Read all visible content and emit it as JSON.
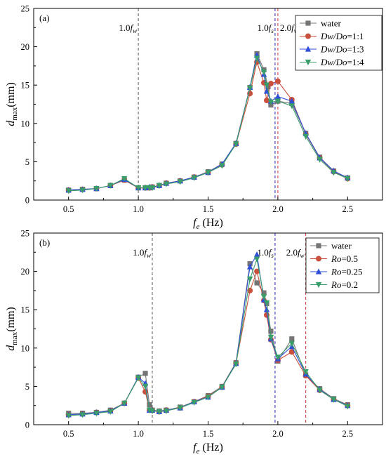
{
  "chart_data": [
    {
      "type": "line",
      "panel_label": "(a)",
      "xlabel_main": "f",
      "xlabel_sub": "e",
      "xlabel_unit": " (Hz)",
      "ylabel_main": "d",
      "ylabel_sub": "max",
      "ylabel_unit": "(mm)",
      "xlim": [
        0.25,
        2.75
      ],
      "ylim": [
        0,
        25
      ],
      "xticks": [
        0.5,
        1.0,
        1.5,
        2.0,
        2.5
      ],
      "xtick_labels": [
        "0.5",
        "1.0",
        "1.5",
        "2.0",
        "2.5"
      ],
      "yticks": [
        0,
        5,
        10,
        15,
        20,
        25
      ],
      "ytick_labels": [
        "0",
        "5",
        "10",
        "15",
        "20",
        "25"
      ],
      "grid": false,
      "legend_position": "top-right",
      "vlines": [
        {
          "x": 1.0,
          "color": "#555555",
          "label_main": "1.0",
          "label_italic": "f",
          "label_sub": "w",
          "anchor": "end"
        },
        {
          "x": 1.98,
          "color": "#2222cc",
          "label_main": "1.0",
          "label_italic": "f",
          "label_sub": "s",
          "anchor": "end"
        },
        {
          "x": 2.0,
          "color": "#cc3333",
          "label_main": "2.0",
          "label_italic": "f",
          "label_sub": "w",
          "anchor": "start"
        }
      ],
      "series": [
        {
          "name": "water",
          "color": "#757575",
          "marker": "square",
          "x": [
            0.5,
            0.6,
            0.7,
            0.8,
            0.9,
            1.0,
            1.05,
            1.08,
            1.1,
            1.15,
            1.2,
            1.3,
            1.4,
            1.5,
            1.6,
            1.7,
            1.8,
            1.85,
            1.9,
            1.93,
            1.95,
            2.0,
            2.1,
            2.2,
            2.3,
            2.4,
            2.5
          ],
          "y": [
            1.3,
            1.4,
            1.5,
            1.9,
            2.6,
            1.6,
            1.6,
            1.6,
            1.7,
            1.9,
            2.2,
            2.5,
            3.0,
            3.7,
            4.7,
            7.4,
            14.7,
            19.1,
            17.0,
            14.8,
            12.4,
            12.9,
            12.6,
            8.7,
            5.6,
            3.8,
            2.9
          ]
        },
        {
          "name": "Dw/Do=1:1",
          "color": "#c8503c",
          "marker": "circle",
          "x": [
            0.5,
            0.6,
            0.7,
            0.8,
            0.9,
            1.0,
            1.05,
            1.08,
            1.1,
            1.15,
            1.2,
            1.3,
            1.4,
            1.5,
            1.6,
            1.7,
            1.8,
            1.85,
            1.9,
            1.92,
            1.95,
            2.0,
            2.1,
            2.2,
            2.3,
            2.4,
            2.5
          ],
          "y": [
            1.3,
            1.4,
            1.5,
            1.9,
            2.6,
            1.6,
            1.6,
            1.6,
            1.7,
            1.9,
            2.2,
            2.5,
            3.0,
            3.6,
            4.6,
            7.3,
            13.9,
            18.0,
            15.3,
            13.0,
            15.2,
            15.5,
            13.1,
            8.6,
            5.5,
            3.7,
            2.8
          ]
        },
        {
          "name": "Dw/Do=1:3",
          "color": "#2f4fd8",
          "marker": "triangle-up",
          "x": [
            0.5,
            0.6,
            0.7,
            0.8,
            0.9,
            1.0,
            1.05,
            1.08,
            1.1,
            1.15,
            1.2,
            1.3,
            1.4,
            1.5,
            1.6,
            1.7,
            1.8,
            1.85,
            1.9,
            1.92,
            1.95,
            2.0,
            2.1,
            2.2,
            2.3,
            2.4,
            2.5
          ],
          "y": [
            1.3,
            1.4,
            1.5,
            1.9,
            2.7,
            1.6,
            1.6,
            1.7,
            1.7,
            1.9,
            2.2,
            2.5,
            3.0,
            3.6,
            4.7,
            7.4,
            14.7,
            18.9,
            16.4,
            14.2,
            12.9,
            13.5,
            12.9,
            8.7,
            5.5,
            3.8,
            2.9
          ]
        },
        {
          "name": "Dw/Do=1:4",
          "color": "#3a9e6a",
          "marker": "triangle-down",
          "x": [
            0.5,
            0.6,
            0.7,
            0.8,
            0.9,
            1.0,
            1.05,
            1.08,
            1.1,
            1.15,
            1.2,
            1.3,
            1.4,
            1.5,
            1.6,
            1.7,
            1.8,
            1.85,
            1.9,
            1.92,
            1.95,
            2.0,
            2.1,
            2.2,
            2.3,
            2.4,
            2.5
          ],
          "y": [
            1.2,
            1.3,
            1.5,
            1.9,
            2.8,
            1.6,
            1.6,
            1.6,
            1.6,
            1.9,
            2.1,
            2.4,
            2.9,
            3.6,
            4.5,
            7.3,
            14.6,
            18.5,
            16.7,
            15.0,
            12.8,
            12.9,
            12.3,
            8.3,
            5.3,
            3.6,
            2.8
          ]
        }
      ]
    },
    {
      "type": "line",
      "panel_label": "(b)",
      "xlabel_main": "f",
      "xlabel_sub": "e",
      "xlabel_unit": " (Hz)",
      "ylabel_main": "d",
      "ylabel_sub": "max",
      "ylabel_unit": "(mm)",
      "xlim": [
        0.25,
        2.75
      ],
      "ylim": [
        0,
        25
      ],
      "xticks": [
        0.5,
        1.0,
        1.5,
        2.0,
        2.5
      ],
      "xtick_labels": [
        "0.5",
        "1.0",
        "1.5",
        "2.0",
        "2.5"
      ],
      "yticks": [
        0,
        5,
        10,
        15,
        20,
        25
      ],
      "ytick_labels": [
        "0",
        "5",
        "10",
        "15",
        "20",
        "25"
      ],
      "grid": false,
      "legend_position": "top-right",
      "vlines": [
        {
          "x": 1.1,
          "color": "#555555",
          "label_main": "1.0",
          "label_italic": "f",
          "label_sub": "w",
          "anchor": "end"
        },
        {
          "x": 1.98,
          "color": "#2222cc",
          "label_main": "1.0",
          "label_italic": "f",
          "label_sub": "s",
          "anchor": "end"
        },
        {
          "x": 2.2,
          "color": "#cc3333",
          "label_main": "2.0",
          "label_italic": "f",
          "label_sub": "w",
          "anchor": "end"
        }
      ],
      "series": [
        {
          "name": "water",
          "color": "#757575",
          "marker": "square",
          "x": [
            0.5,
            0.6,
            0.7,
            0.8,
            0.9,
            1.0,
            1.05,
            1.08,
            1.1,
            1.15,
            1.2,
            1.3,
            1.4,
            1.5,
            1.6,
            1.7,
            1.8,
            1.85,
            1.9,
            1.92,
            1.95,
            2.0,
            2.1,
            2.2,
            2.3,
            2.4,
            2.5
          ],
          "y": [
            1.5,
            1.5,
            1.6,
            1.9,
            2.8,
            6.2,
            6.7,
            2.6,
            1.9,
            1.8,
            1.9,
            2.3,
            3.0,
            3.8,
            5.0,
            8.1,
            21.0,
            18.5,
            17.2,
            15.8,
            12.2,
            8.3,
            11.2,
            6.5,
            4.7,
            3.4,
            2.6
          ]
        },
        {
          "name": "Ro=0.5",
          "color": "#c8503c",
          "marker": "circle",
          "x": [
            0.5,
            0.6,
            0.7,
            0.8,
            0.9,
            1.0,
            1.05,
            1.08,
            1.1,
            1.15,
            1.2,
            1.3,
            1.4,
            1.5,
            1.6,
            1.7,
            1.8,
            1.85,
            1.9,
            1.92,
            1.95,
            2.0,
            2.1,
            2.2,
            2.3,
            2.4,
            2.5
          ],
          "y": [
            1.3,
            1.4,
            1.6,
            1.8,
            2.8,
            6.1,
            4.3,
            1.9,
            1.9,
            1.7,
            1.9,
            2.2,
            3.0,
            3.7,
            4.9,
            8.0,
            17.5,
            20.0,
            16.2,
            14.3,
            11.1,
            8.4,
            9.5,
            6.4,
            4.5,
            3.3,
            2.5
          ]
        },
        {
          "name": "Ro=0.25",
          "color": "#2f4fd8",
          "marker": "triangle-up",
          "x": [
            0.5,
            0.6,
            0.7,
            0.8,
            0.9,
            1.0,
            1.05,
            1.08,
            1.1,
            1.15,
            1.2,
            1.3,
            1.4,
            1.5,
            1.6,
            1.7,
            1.8,
            1.85,
            1.9,
            1.92,
            1.95,
            2.0,
            2.1,
            2.2,
            2.3,
            2.4,
            2.5
          ],
          "y": [
            1.3,
            1.4,
            1.6,
            1.8,
            2.8,
            6.2,
            5.4,
            1.9,
            1.9,
            1.7,
            1.9,
            2.2,
            3.0,
            3.6,
            4.9,
            8.0,
            20.6,
            22.2,
            16.3,
            15.0,
            11.2,
            8.6,
            10.2,
            6.6,
            4.6,
            3.3,
            2.5
          ]
        },
        {
          "name": "Ro=0.2",
          "color": "#3a9e6a",
          "marker": "triangle-down",
          "x": [
            0.5,
            0.6,
            0.7,
            0.8,
            0.9,
            1.0,
            1.05,
            1.08,
            1.1,
            1.15,
            1.2,
            1.3,
            1.4,
            1.5,
            1.6,
            1.7,
            1.8,
            1.85,
            1.9,
            1.92,
            1.95,
            2.0,
            2.1,
            2.2,
            2.3,
            2.4,
            2.5
          ],
          "y": [
            1.2,
            1.3,
            1.5,
            1.7,
            2.8,
            6.1,
            5.0,
            1.9,
            1.8,
            1.7,
            1.8,
            2.2,
            2.9,
            3.6,
            4.9,
            7.9,
            19.0,
            21.6,
            16.7,
            15.9,
            11.4,
            8.8,
            10.6,
            6.9,
            4.5,
            3.3,
            2.4
          ]
        }
      ]
    }
  ]
}
